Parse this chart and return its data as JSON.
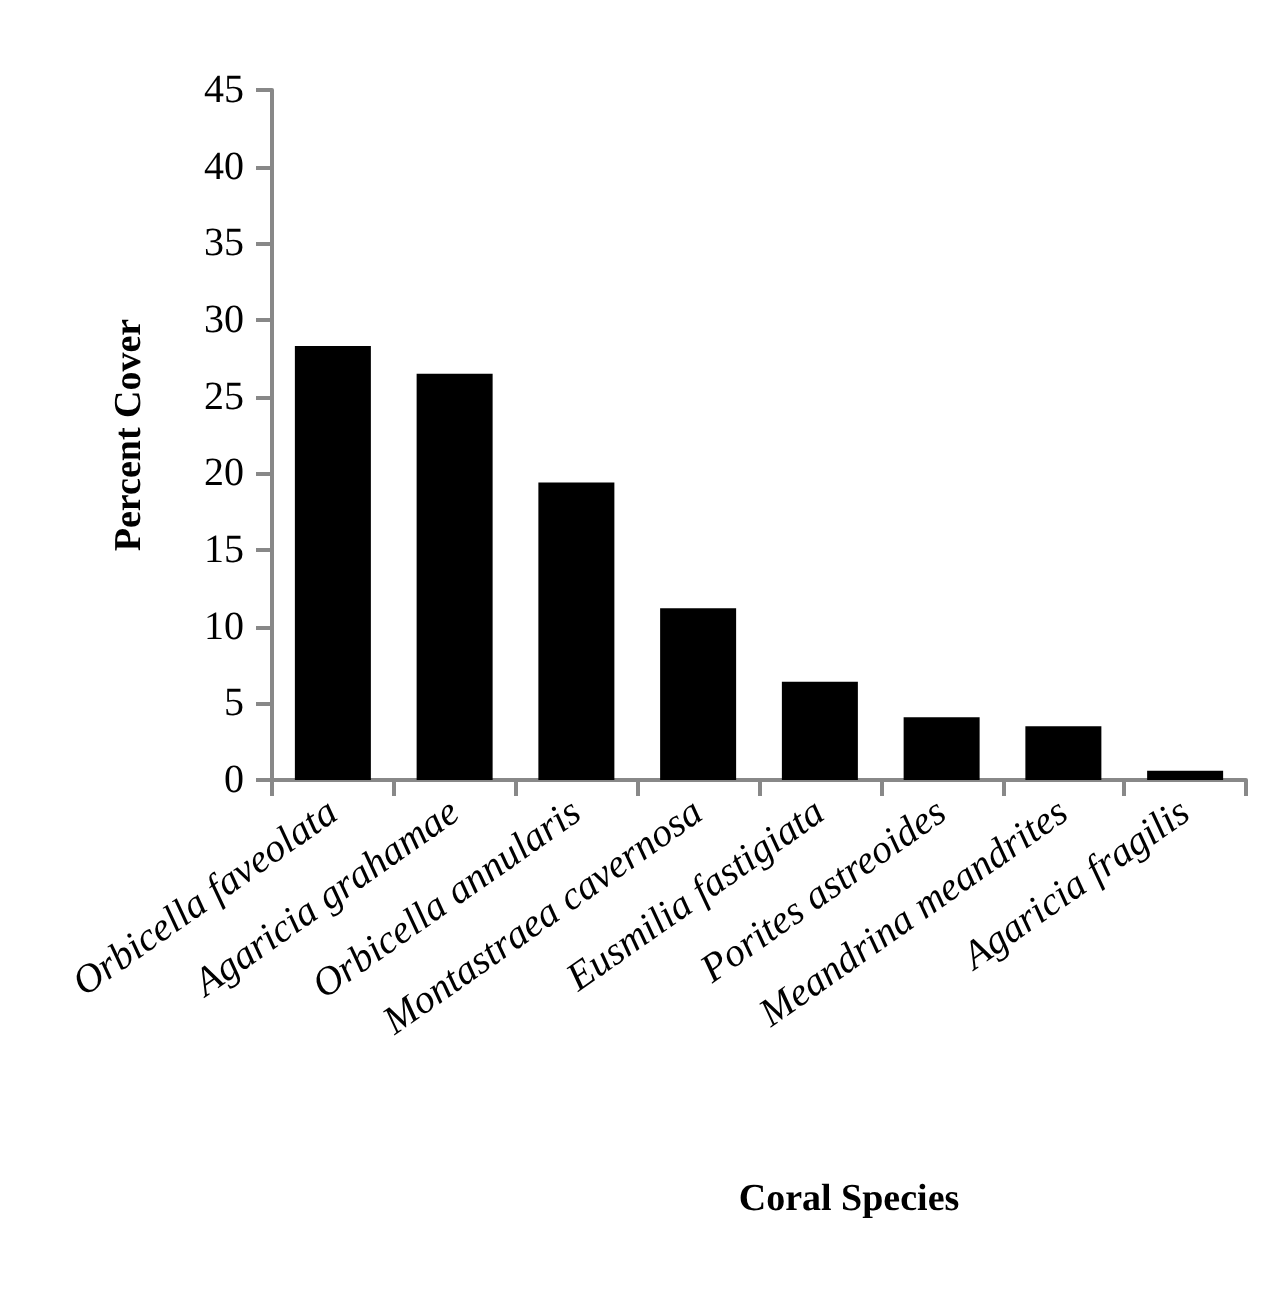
{
  "chart_data": {
    "type": "bar",
    "xlabel": "Coral Species",
    "ylabel": "Percent Cover",
    "categories": [
      "Orbicella faveolata",
      "Agaricia grahamae",
      "Orbicella annularis",
      "Montastraea cavernosa",
      "Eusmilia fastigiata",
      "Porites astreoides",
      "Meandrina meandrites",
      "Agaricia fragilis"
    ],
    "values": [
      28.3,
      26.5,
      19.4,
      11.2,
      6.4,
      4.1,
      3.5,
      0.6
    ],
    "color": "#000000",
    "ylim": [
      0,
      45
    ],
    "yticks": [
      0,
      5,
      10,
      15,
      20,
      25,
      30,
      35,
      40,
      45
    ],
    "grid": false
  }
}
